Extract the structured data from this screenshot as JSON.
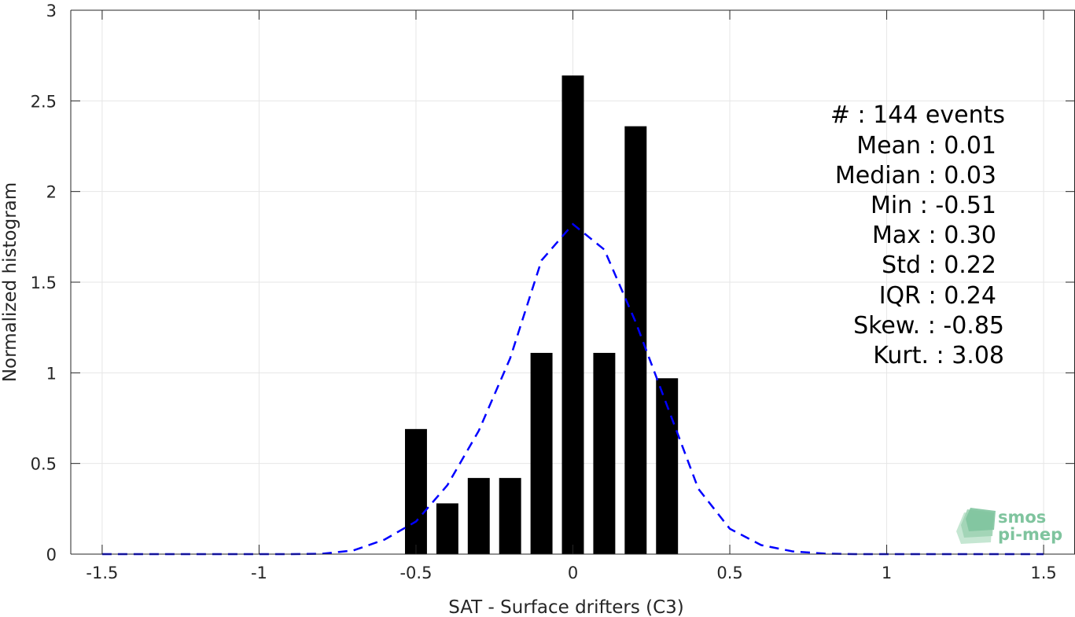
{
  "chart_data": {
    "type": "bar",
    "xlabel": "SAT - Surface drifters (C3)",
    "ylabel": "Normalized histogram",
    "xlim": [
      -1.6,
      1.6
    ],
    "ylim": [
      0,
      3
    ],
    "xticks": [
      -1.5,
      -1,
      -0.5,
      0,
      0.5,
      1,
      1.5
    ],
    "xtick_labels": [
      "-1.5",
      "-1",
      "-0.5",
      "0",
      "0.5",
      "1",
      "1.5"
    ],
    "yticks": [
      0,
      0.5,
      1,
      1.5,
      2,
      2.5,
      3
    ],
    "ytick_labels": [
      "0",
      "0.5",
      "1",
      "1.5",
      "2",
      "2.5",
      "3"
    ],
    "grid": true,
    "bars": {
      "color": "#000000",
      "width": 0.07,
      "x": [
        -0.5,
        -0.4,
        -0.3,
        -0.2,
        -0.1,
        0.0,
        0.1,
        0.2,
        0.3
      ],
      "values": [
        0.69,
        0.28,
        0.42,
        0.42,
        1.11,
        2.64,
        1.11,
        2.36,
        0.97
      ]
    },
    "fit_line": {
      "style": "dashed",
      "color": "#0000ff",
      "x": [
        -1.5,
        -1.4,
        -1.3,
        -1.2,
        -1.1,
        -1.0,
        -0.9,
        -0.8,
        -0.7,
        -0.6,
        -0.5,
        -0.4,
        -0.3,
        -0.2,
        -0.1,
        0.0,
        0.1,
        0.2,
        0.3,
        0.4,
        0.5,
        0.6,
        0.7,
        0.8,
        0.9,
        1.0,
        1.1,
        1.2,
        1.3,
        1.4,
        1.5
      ],
      "y": [
        0.0,
        0.0,
        0.0,
        0.0,
        0.0,
        0.0,
        0.0,
        0.002,
        0.02,
        0.08,
        0.18,
        0.38,
        0.68,
        1.08,
        1.62,
        1.82,
        1.68,
        1.28,
        0.82,
        0.36,
        0.14,
        0.05,
        0.015,
        0.003,
        0.0,
        0.0,
        0.0,
        0.0,
        0.0,
        0.0,
        0.0
      ]
    },
    "annotations": [
      "#  : 144 events",
      "Mean : 0.01",
      "Median : 0.03",
      "Min : -0.51",
      "Max : 0.30",
      "Std : 0.22",
      "IQR : 0.24",
      "Skew. : -0.85",
      "Kurt. : 3.08"
    ]
  },
  "logo": {
    "line1": "smos",
    "line2": "pi-mep",
    "color": "#7fc49e"
  },
  "colors": {
    "grid": "#e6e6e6",
    "axis": "#262626",
    "background": "#ffffff"
  }
}
